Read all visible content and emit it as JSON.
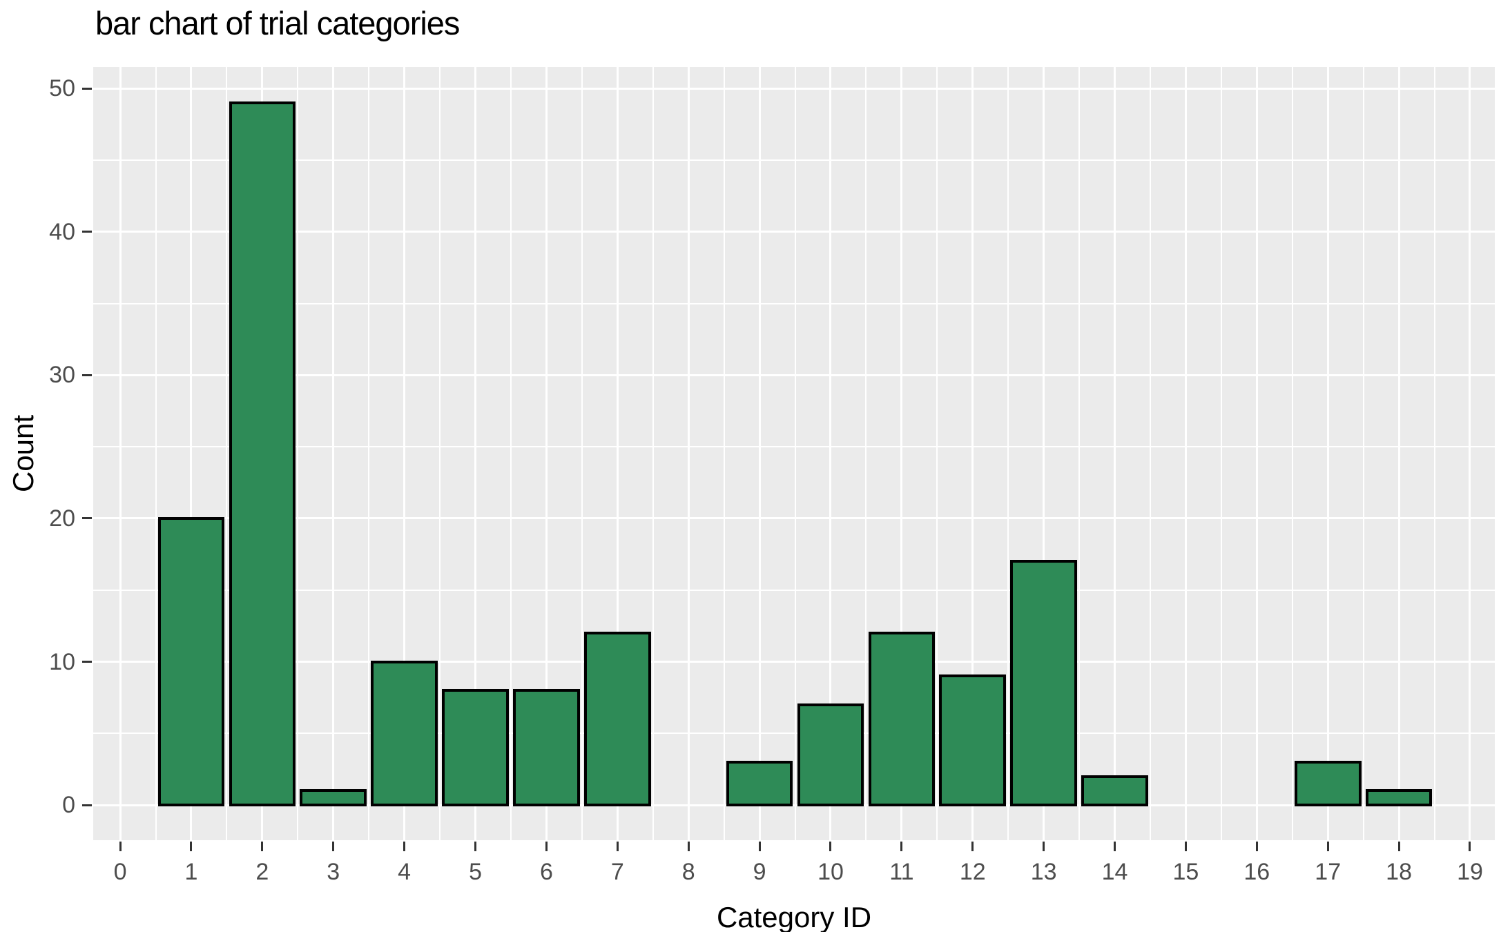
{
  "chart_data": {
    "type": "bar",
    "title": "bar chart of trial categories",
    "xlabel": "Category ID",
    "ylabel": "Count",
    "categories": [
      0,
      1,
      2,
      3,
      4,
      5,
      6,
      7,
      8,
      9,
      10,
      11,
      12,
      13,
      14,
      15,
      16,
      17,
      18,
      19
    ],
    "values": [
      0,
      20,
      49,
      1,
      10,
      8,
      8,
      12,
      0,
      3,
      7,
      12,
      9,
      17,
      2,
      0,
      0,
      3,
      1,
      0
    ],
    "x_ticks": [
      0,
      1,
      2,
      3,
      4,
      5,
      6,
      7,
      8,
      9,
      10,
      11,
      12,
      13,
      14,
      15,
      16,
      17,
      18,
      19
    ],
    "y_ticks": [
      0,
      10,
      20,
      30,
      40,
      50
    ],
    "y_minor_ticks": [
      5,
      15,
      25,
      35,
      45
    ],
    "xlim": [
      -0.38,
      19.35
    ],
    "ylim": [
      -2.45,
      51.5
    ],
    "bar_width": 0.9,
    "grid": {
      "major": true,
      "minor": true
    },
    "legend": "none",
    "colors": {
      "bar_fill": "#2E8B57",
      "bar_stroke": "#000000",
      "panel_bg": "#EBEBEB",
      "grid_major": "#FFFFFF",
      "grid_minor": "#FFFFFF",
      "tick_mark": "#333333",
      "tick_label": "#4D4D4D",
      "axis_title": "#000000",
      "title": "#000000",
      "page_bg": "#FFFFFF"
    }
  }
}
